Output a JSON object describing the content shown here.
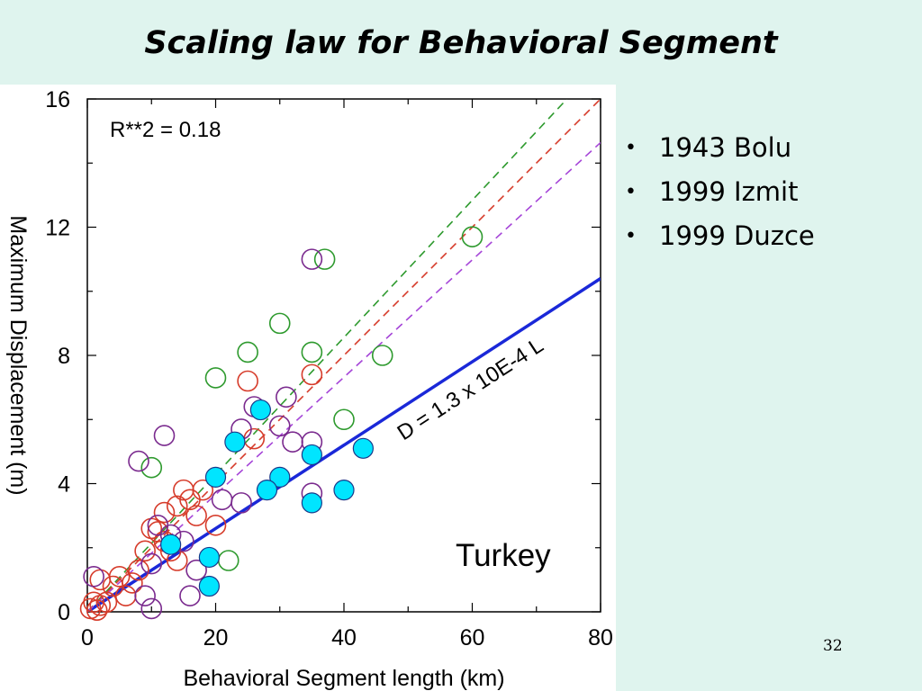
{
  "slide": {
    "title": "Scaling law for Behavioral Segment",
    "bullets": [
      "1943 Bolu",
      "1999 Izmit",
      "1999 Duzce"
    ],
    "page_number": "32"
  },
  "chart_data": {
    "type": "scatter",
    "title": "",
    "xlabel": "Behavioral Segment length (km)",
    "ylabel": "Maximum Displacement (m)",
    "xlim": [
      0,
      80
    ],
    "ylim": [
      0,
      16
    ],
    "x_ticks": [
      0,
      20,
      40,
      60,
      80
    ],
    "y_ticks": [
      0,
      4,
      8,
      12,
      16
    ],
    "grid": false,
    "annotations": {
      "r2": "R**2 = 0.18",
      "region": "Turkey",
      "fit_label": "D = 1.3 x 10E-4 L"
    },
    "colors": {
      "green": "#2e9a2e",
      "red": "#d63b2a",
      "purple": "#7a2a8e",
      "cyan_fill": "#00e5ff",
      "fit_line": "#1a28d8",
      "dashed_purple": "#a646d8"
    },
    "series": [
      {
        "color": "green",
        "marker": "open-circle",
        "points": [
          [
            60,
            11.7
          ],
          [
            37,
            11
          ],
          [
            30,
            9
          ],
          [
            25,
            8.1
          ],
          [
            35,
            8.1
          ],
          [
            46,
            8
          ],
          [
            20,
            7.3
          ],
          [
            40,
            6
          ],
          [
            10,
            4.5
          ],
          [
            22,
            1.6
          ]
        ]
      },
      {
        "color": "red",
        "marker": "open-circle",
        "points": [
          [
            35,
            7.4
          ],
          [
            25,
            7.2
          ],
          [
            26,
            5.4
          ],
          [
            15,
            3.8
          ],
          [
            18,
            3.8
          ],
          [
            16,
            3.5
          ],
          [
            14,
            3.3
          ],
          [
            12,
            3.1
          ],
          [
            17,
            3
          ],
          [
            20,
            2.7
          ],
          [
            10,
            2.6
          ],
          [
            11,
            2.5
          ],
          [
            12,
            2.2
          ],
          [
            13,
            1.9
          ],
          [
            14,
            1.6
          ],
          [
            9,
            1.9
          ],
          [
            8,
            1.3
          ],
          [
            7,
            0.9
          ],
          [
            5,
            1.1
          ],
          [
            2,
            1
          ],
          [
            4,
            0.8
          ],
          [
            6,
            0.5
          ],
          [
            3,
            0.3
          ],
          [
            1,
            0.3
          ],
          [
            0.5,
            0.1
          ],
          [
            1.5,
            0.05
          ],
          [
            2,
            0.2
          ]
        ]
      },
      {
        "color": "purple",
        "marker": "open-circle",
        "points": [
          [
            35,
            11
          ],
          [
            31,
            6.7
          ],
          [
            26,
            6.4
          ],
          [
            24,
            5.7
          ],
          [
            30,
            5.8
          ],
          [
            32,
            5.3
          ],
          [
            35,
            5.3
          ],
          [
            12,
            5.5
          ],
          [
            8,
            4.7
          ],
          [
            35,
            3.7
          ],
          [
            21,
            3.5
          ],
          [
            24,
            3.4
          ],
          [
            11,
            2.7
          ],
          [
            13,
            2.4
          ],
          [
            15,
            2.2
          ],
          [
            10,
            1.5
          ],
          [
            17,
            1.3
          ],
          [
            16,
            0.5
          ],
          [
            9,
            0.5
          ],
          [
            10,
            0.1
          ],
          [
            1,
            1.1
          ]
        ]
      },
      {
        "color": "cyan",
        "marker": "filled-circle",
        "points": [
          [
            27,
            6.3
          ],
          [
            23,
            5.3
          ],
          [
            43,
            5.1
          ],
          [
            35,
            4.9
          ],
          [
            20,
            4.2
          ],
          [
            30,
            4.2
          ],
          [
            28,
            3.8
          ],
          [
            40,
            3.8
          ],
          [
            35,
            3.4
          ],
          [
            13,
            2.1
          ],
          [
            19,
            1.7
          ],
          [
            19,
            0.8
          ]
        ]
      }
    ],
    "lines": [
      {
        "style": "solid",
        "color": "fit_line",
        "slope": 0.13,
        "label": "D = 1.3 x 10E-4 L"
      },
      {
        "style": "dashed",
        "color": "green",
        "slope": 0.214
      },
      {
        "style": "dashed",
        "color": "red",
        "slope": 0.2
      },
      {
        "style": "dashed",
        "color": "dashed_purple",
        "slope": 0.183
      }
    ]
  }
}
